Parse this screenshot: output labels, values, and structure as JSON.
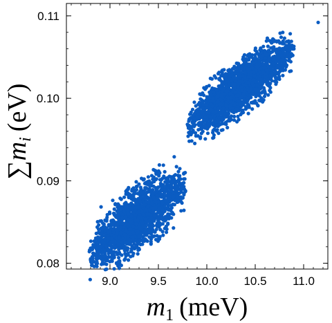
{
  "chart_data": {
    "type": "scatter",
    "title": "",
    "xlabel": {
      "var": "m",
      "sub": "1",
      "unit": "(meV)"
    },
    "ylabel": {
      "sum": "∑",
      "var": "m",
      "sub": "i",
      "unit": "(eV)"
    },
    "xlim": [
      8.55,
      11.25
    ],
    "ylim": [
      0.0793,
      0.1115
    ],
    "xticks": [
      "9.0",
      "9.5",
      "10.0",
      "10.5",
      "11.0"
    ],
    "yticks": [
      "0.08",
      "0.09",
      "0.10",
      "0.11"
    ],
    "x_minor_tick_step": 0.1,
    "y_minor_tick_step": 0.002,
    "grid": false,
    "marker_color": "#0b5cc2",
    "clusters": [
      {
        "x_range": [
          8.78,
          9.78
        ],
        "sum_at_x_min": 0.0812,
        "sum_slope_per_meV": 0.0084,
        "sum_halfwidth": 0.0046,
        "points": 1800
      },
      {
        "x_range": [
          9.8,
          10.9
        ],
        "sum_at_x_min": 0.0966,
        "sum_slope_per_meV": 0.0085,
        "sum_halfwidth": 0.0038,
        "points": 2000
      }
    ],
    "outliers": [
      {
        "x": 11.15,
        "y": 0.1092
      }
    ]
  }
}
